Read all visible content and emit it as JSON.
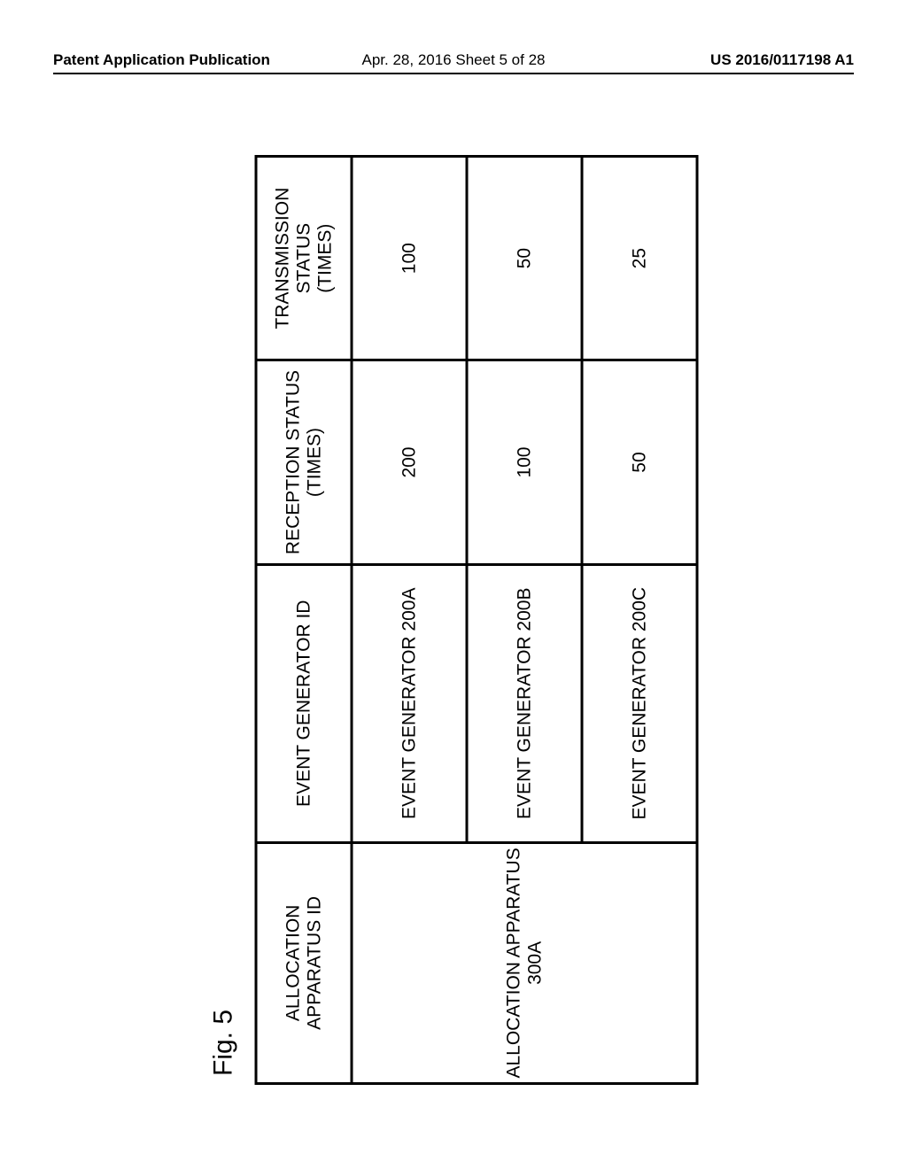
{
  "header": {
    "left": "Patent Application Publication",
    "center": "Apr. 28, 2016  Sheet 5 of 28",
    "right": "US 2016/0117198 A1"
  },
  "figure": {
    "label": "Fig. 5",
    "label_fontsize": 30,
    "table": {
      "border_color": "#000000",
      "border_width": 3,
      "background": "#ffffff",
      "header_fontsize": 21,
      "cell_fontsize": 21,
      "columns": [
        {
          "key": "allocation",
          "label_line1": "ALLOCATION",
          "label_line2": "APPARATUS ID"
        },
        {
          "key": "event",
          "label_line1": "EVENT GENERATOR ID",
          "label_line2": ""
        },
        {
          "key": "reception",
          "label_line1": "RECEPTION STATUS",
          "label_line2": "(TIMES)"
        },
        {
          "key": "transmission",
          "label_line1": "TRANSMISSION STATUS",
          "label_line2": "(TIMES)"
        }
      ],
      "allocation_label_line1": "ALLOCATION APPARATUS",
      "allocation_label_line2": "300A",
      "rows": [
        {
          "event": "EVENT GENERATOR 200A",
          "reception": "200",
          "transmission": "100"
        },
        {
          "event": "EVENT GENERATOR 200B",
          "reception": "100",
          "transmission": "50"
        },
        {
          "event": "EVENT GENERATOR 200C",
          "reception": "50",
          "transmission": "25"
        }
      ]
    }
  }
}
